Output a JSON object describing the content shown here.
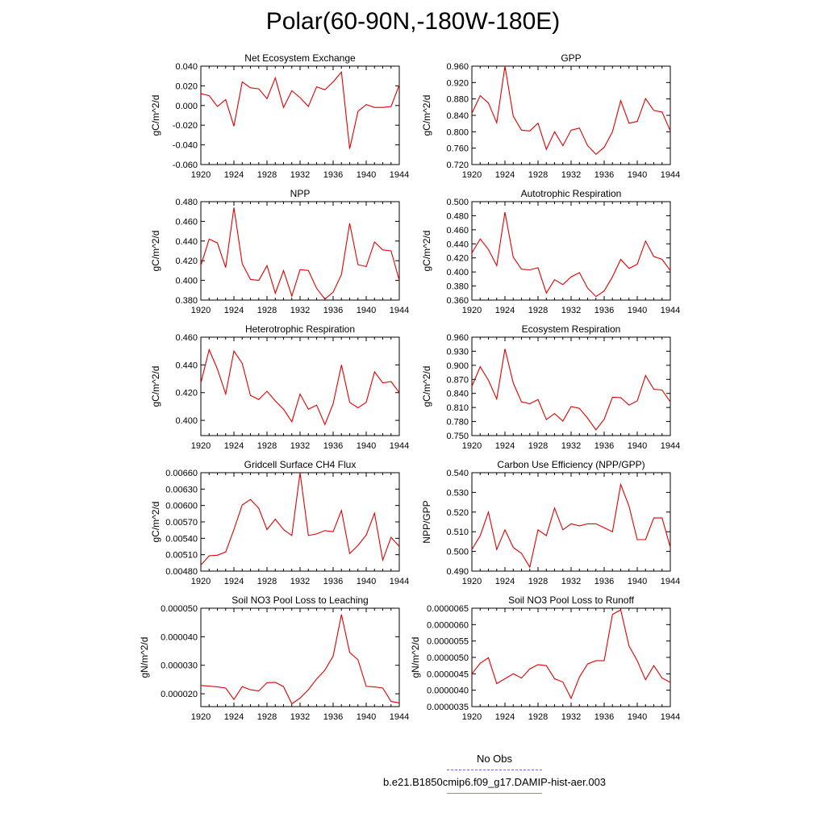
{
  "page": {
    "title": "Polar(60-90N,-180W-180E)"
  },
  "legend": {
    "items": [
      {
        "label": "No Obs",
        "color": "#6b6bdf",
        "style": "dashed"
      },
      {
        "label": "b.e21.B1850cmip6.f09_g17.DAMIP-hist-aer.003",
        "color": "#e07070",
        "style": "solid"
      }
    ]
  },
  "chart_data": [
    {
      "type": "line",
      "title": "Net Ecosystem Exchange",
      "ylabel": "gC/m^2/d",
      "xlim": [
        1920,
        1944
      ],
      "ylim": [
        -0.06,
        0.04
      ],
      "xticks": [
        1920,
        1924,
        1928,
        1932,
        1936,
        1940,
        1944
      ],
      "yticks": [
        -0.06,
        -0.04,
        -0.02,
        0.0,
        0.02,
        0.04
      ],
      "ydecimals": 3,
      "x": [
        1920,
        1921,
        1922,
        1923,
        1924,
        1925,
        1926,
        1927,
        1928,
        1929,
        1930,
        1931,
        1932,
        1933,
        1934,
        1935,
        1936,
        1937,
        1938,
        1939,
        1940,
        1941,
        1942,
        1943,
        1944
      ],
      "series": [
        {
          "values": [
            0.012,
            0.01,
            -0.001,
            0.006,
            -0.021,
            0.024,
            0.018,
            0.017,
            0.007,
            0.028,
            -0.002,
            0.015,
            0.008,
            -0.001,
            0.019,
            0.016,
            0.024,
            0.034,
            -0.044,
            -0.006,
            0.001,
            -0.002,
            -0.002,
            -0.001,
            0.021
          ],
          "color": "#e00000"
        }
      ]
    },
    {
      "type": "line",
      "title": "GPP",
      "ylabel": "gC/m^2/d",
      "xlim": [
        1920,
        1944
      ],
      "ylim": [
        0.72,
        0.96
      ],
      "xticks": [
        1920,
        1924,
        1928,
        1932,
        1936,
        1940,
        1944
      ],
      "yticks": [
        0.72,
        0.76,
        0.8,
        0.84,
        0.88,
        0.92,
        0.96
      ],
      "ydecimals": 3,
      "x": [
        1920,
        1921,
        1922,
        1923,
        1924,
        1925,
        1926,
        1927,
        1928,
        1929,
        1930,
        1931,
        1932,
        1933,
        1934,
        1935,
        1936,
        1937,
        1938,
        1939,
        1940,
        1941,
        1942,
        1943,
        1944
      ],
      "series": [
        {
          "values": [
            0.845,
            0.888,
            0.87,
            0.822,
            0.96,
            0.838,
            0.804,
            0.802,
            0.821,
            0.757,
            0.8,
            0.766,
            0.804,
            0.809,
            0.766,
            0.745,
            0.762,
            0.8,
            0.876,
            0.821,
            0.825,
            0.881,
            0.852,
            0.848,
            0.802
          ],
          "color": "#e00000"
        }
      ]
    },
    {
      "type": "line",
      "title": "NPP",
      "ylabel": "gC/m^2/d",
      "xlim": [
        1920,
        1944
      ],
      "ylim": [
        0.38,
        0.48
      ],
      "xticks": [
        1920,
        1924,
        1928,
        1932,
        1936,
        1940,
        1944
      ],
      "yticks": [
        0.38,
        0.4,
        0.42,
        0.44,
        0.46,
        0.48
      ],
      "ydecimals": 3,
      "x": [
        1920,
        1921,
        1922,
        1923,
        1924,
        1925,
        1926,
        1927,
        1928,
        1929,
        1930,
        1931,
        1932,
        1933,
        1934,
        1935,
        1936,
        1937,
        1938,
        1939,
        1940,
        1941,
        1942,
        1943,
        1944
      ],
      "series": [
        {
          "values": [
            0.415,
            0.442,
            0.438,
            0.413,
            0.474,
            0.417,
            0.401,
            0.4,
            0.415,
            0.387,
            0.41,
            0.384,
            0.411,
            0.41,
            0.392,
            0.381,
            0.388,
            0.406,
            0.458,
            0.416,
            0.414,
            0.439,
            0.431,
            0.43,
            0.4
          ],
          "color": "#e00000"
        }
      ]
    },
    {
      "type": "line",
      "title": "Autotrophic Respiration",
      "ylabel": "gC/m^2/d",
      "xlim": [
        1920,
        1944
      ],
      "ylim": [
        0.36,
        0.5
      ],
      "xticks": [
        1920,
        1924,
        1928,
        1932,
        1936,
        1940,
        1944
      ],
      "yticks": [
        0.36,
        0.38,
        0.4,
        0.42,
        0.44,
        0.46,
        0.48,
        0.5
      ],
      "ydecimals": 3,
      "x": [
        1920,
        1921,
        1922,
        1923,
        1924,
        1925,
        1926,
        1927,
        1928,
        1929,
        1930,
        1931,
        1932,
        1933,
        1934,
        1935,
        1936,
        1937,
        1938,
        1939,
        1940,
        1941,
        1942,
        1943,
        1944
      ],
      "series": [
        {
          "values": [
            0.427,
            0.447,
            0.432,
            0.409,
            0.485,
            0.421,
            0.404,
            0.403,
            0.406,
            0.37,
            0.389,
            0.382,
            0.393,
            0.399,
            0.377,
            0.365,
            0.373,
            0.393,
            0.418,
            0.405,
            0.411,
            0.444,
            0.422,
            0.418,
            0.402
          ],
          "color": "#e00000"
        }
      ]
    },
    {
      "type": "line",
      "title": "Heterotrophic Respiration",
      "ylabel": "gC/m^2/d",
      "xlim": [
        1920,
        1944
      ],
      "ylim": [
        0.389,
        0.46
      ],
      "xticks": [
        1920,
        1924,
        1928,
        1932,
        1936,
        1940,
        1944
      ],
      "yticks": [
        0.4,
        0.42,
        0.44,
        0.46
      ],
      "ydecimals": 3,
      "x": [
        1920,
        1921,
        1922,
        1923,
        1924,
        1925,
        1926,
        1927,
        1928,
        1929,
        1930,
        1931,
        1932,
        1933,
        1934,
        1935,
        1936,
        1937,
        1938,
        1939,
        1940,
        1941,
        1942,
        1943,
        1944
      ],
      "series": [
        {
          "values": [
            0.427,
            0.451,
            0.437,
            0.419,
            0.45,
            0.441,
            0.418,
            0.415,
            0.421,
            0.414,
            0.408,
            0.399,
            0.419,
            0.408,
            0.411,
            0.397,
            0.412,
            0.44,
            0.413,
            0.409,
            0.413,
            0.435,
            0.427,
            0.428,
            0.42
          ],
          "color": "#e00000"
        }
      ]
    },
    {
      "type": "line",
      "title": "Ecosystem Respiration",
      "ylabel": "gC/m^2/d",
      "xlim": [
        1920,
        1944
      ],
      "ylim": [
        0.75,
        0.96
      ],
      "xticks": [
        1920,
        1924,
        1928,
        1932,
        1936,
        1940,
        1944
      ],
      "yticks": [
        0.75,
        0.78,
        0.81,
        0.84,
        0.87,
        0.9,
        0.93,
        0.96
      ],
      "ydecimals": 3,
      "x": [
        1920,
        1921,
        1922,
        1923,
        1924,
        1925,
        1926,
        1927,
        1928,
        1929,
        1930,
        1931,
        1932,
        1933,
        1934,
        1935,
        1936,
        1937,
        1938,
        1939,
        1940,
        1941,
        1942,
        1943,
        1944
      ],
      "series": [
        {
          "values": [
            0.855,
            0.897,
            0.868,
            0.828,
            0.935,
            0.862,
            0.822,
            0.818,
            0.827,
            0.784,
            0.797,
            0.781,
            0.812,
            0.808,
            0.787,
            0.762,
            0.785,
            0.832,
            0.831,
            0.815,
            0.824,
            0.878,
            0.849,
            0.847,
            0.822
          ],
          "color": "#e00000"
        }
      ]
    },
    {
      "type": "line",
      "title": "Gridcell Surface CH4 Flux",
      "ylabel": "gC/m^2/d",
      "xlim": [
        1920,
        1944
      ],
      "ylim": [
        0.0048,
        0.0066
      ],
      "xticks": [
        1920,
        1924,
        1928,
        1932,
        1936,
        1940,
        1944
      ],
      "yticks": [
        0.0048,
        0.0051,
        0.0054,
        0.0057,
        0.006,
        0.0063,
        0.0066
      ],
      "ydecimals": 5,
      "x": [
        1920,
        1921,
        1922,
        1923,
        1924,
        1925,
        1926,
        1927,
        1928,
        1929,
        1930,
        1931,
        1932,
        1933,
        1934,
        1935,
        1936,
        1937,
        1938,
        1939,
        1940,
        1941,
        1942,
        1943,
        1944
      ],
      "series": [
        {
          "values": [
            0.00491,
            0.00508,
            0.00509,
            0.00515,
            0.00556,
            0.00601,
            0.00611,
            0.00595,
            0.00556,
            0.00575,
            0.00556,
            0.00545,
            0.0066,
            0.00545,
            0.00548,
            0.00554,
            0.00552,
            0.00591,
            0.00512,
            0.00527,
            0.00546,
            0.00586,
            0.005,
            0.00542,
            0.00525
          ],
          "color": "#e00000"
        }
      ]
    },
    {
      "type": "line",
      "title": "Carbon Use Efficiency (NPP/GPP)",
      "ylabel": "NPP/GPP",
      "xlim": [
        1920,
        1944
      ],
      "ylim": [
        0.49,
        0.54
      ],
      "xticks": [
        1920,
        1924,
        1928,
        1932,
        1936,
        1940,
        1944
      ],
      "yticks": [
        0.49,
        0.5,
        0.51,
        0.52,
        0.53,
        0.54
      ],
      "ydecimals": 3,
      "x": [
        1920,
        1921,
        1922,
        1923,
        1924,
        1925,
        1926,
        1927,
        1928,
        1929,
        1930,
        1931,
        1932,
        1933,
        1934,
        1935,
        1936,
        1937,
        1938,
        1939,
        1940,
        1941,
        1942,
        1943,
        1944
      ],
      "series": [
        {
          "values": [
            0.501,
            0.508,
            0.52,
            0.501,
            0.511,
            0.502,
            0.499,
            0.492,
            0.511,
            0.508,
            0.522,
            0.511,
            0.514,
            0.513,
            0.514,
            0.514,
            0.512,
            0.51,
            0.534,
            0.523,
            0.506,
            0.506,
            0.517,
            0.517,
            0.502
          ],
          "color": "#e00000"
        }
      ]
    },
    {
      "type": "line",
      "title": "Soil NO3 Pool Loss to Leaching",
      "ylabel": "gN/m^2/d",
      "xlim": [
        1920,
        1944
      ],
      "ylim": [
        1.55e-05,
        5e-05
      ],
      "xticks": [
        1920,
        1924,
        1928,
        1932,
        1936,
        1940,
        1944
      ],
      "yticks": [
        2e-05,
        3e-05,
        4e-05,
        5e-05
      ],
      "ydecimals": 6,
      "x": [
        1920,
        1921,
        1922,
        1923,
        1924,
        1925,
        1926,
        1927,
        1928,
        1929,
        1930,
        1931,
        1932,
        1933,
        1934,
        1935,
        1936,
        1937,
        1938,
        1939,
        1940,
        1941,
        1942,
        1943,
        1944
      ],
      "series": [
        {
          "values": [
            2.29e-05,
            2.27e-05,
            2.24e-05,
            2.2e-05,
            1.8e-05,
            2.25e-05,
            2.14e-05,
            2.1e-05,
            2.39e-05,
            2.4e-05,
            2.25e-05,
            1.65e-05,
            1.85e-05,
            2.14e-05,
            2.52e-05,
            2.83e-05,
            3.32e-05,
            4.78e-05,
            3.45e-05,
            3.19e-05,
            2.26e-05,
            2.24e-05,
            2.2e-05,
            1.73e-05,
            1.68e-05
          ],
          "color": "#e00000"
        }
      ]
    },
    {
      "type": "line",
      "title": "Soil NO3 Pool Loss to Runoff",
      "ylabel": "gN/m^2/d",
      "xlim": [
        1920,
        1944
      ],
      "ylim": [
        3.5e-06,
        6.5e-06
      ],
      "xticks": [
        1920,
        1924,
        1928,
        1932,
        1936,
        1940,
        1944
      ],
      "yticks": [
        3.5e-06,
        4e-06,
        4.5e-06,
        5e-06,
        5.5e-06,
        6e-06,
        6.5e-06
      ],
      "ydecimals": 7,
      "x": [
        1920,
        1921,
        1922,
        1923,
        1924,
        1925,
        1926,
        1927,
        1928,
        1929,
        1930,
        1931,
        1932,
        1933,
        1934,
        1935,
        1936,
        1937,
        1938,
        1939,
        1940,
        1941,
        1942,
        1943,
        1944
      ],
      "series": [
        {
          "values": [
            4.5e-06,
            4.82e-06,
            4.99e-06,
            4.2e-06,
            4.35e-06,
            4.5e-06,
            4.37e-06,
            4.65e-06,
            4.78e-06,
            4.75e-06,
            4.35e-06,
            4.25e-06,
            3.75e-06,
            4.4e-06,
            4.8e-06,
            4.9e-06,
            4.9e-06,
            6.31e-06,
            6.45e-06,
            5.35e-06,
            4.9e-06,
            4.32e-06,
            4.75e-06,
            4.37e-06,
            4.24e-06
          ],
          "color": "#e00000"
        }
      ]
    }
  ]
}
